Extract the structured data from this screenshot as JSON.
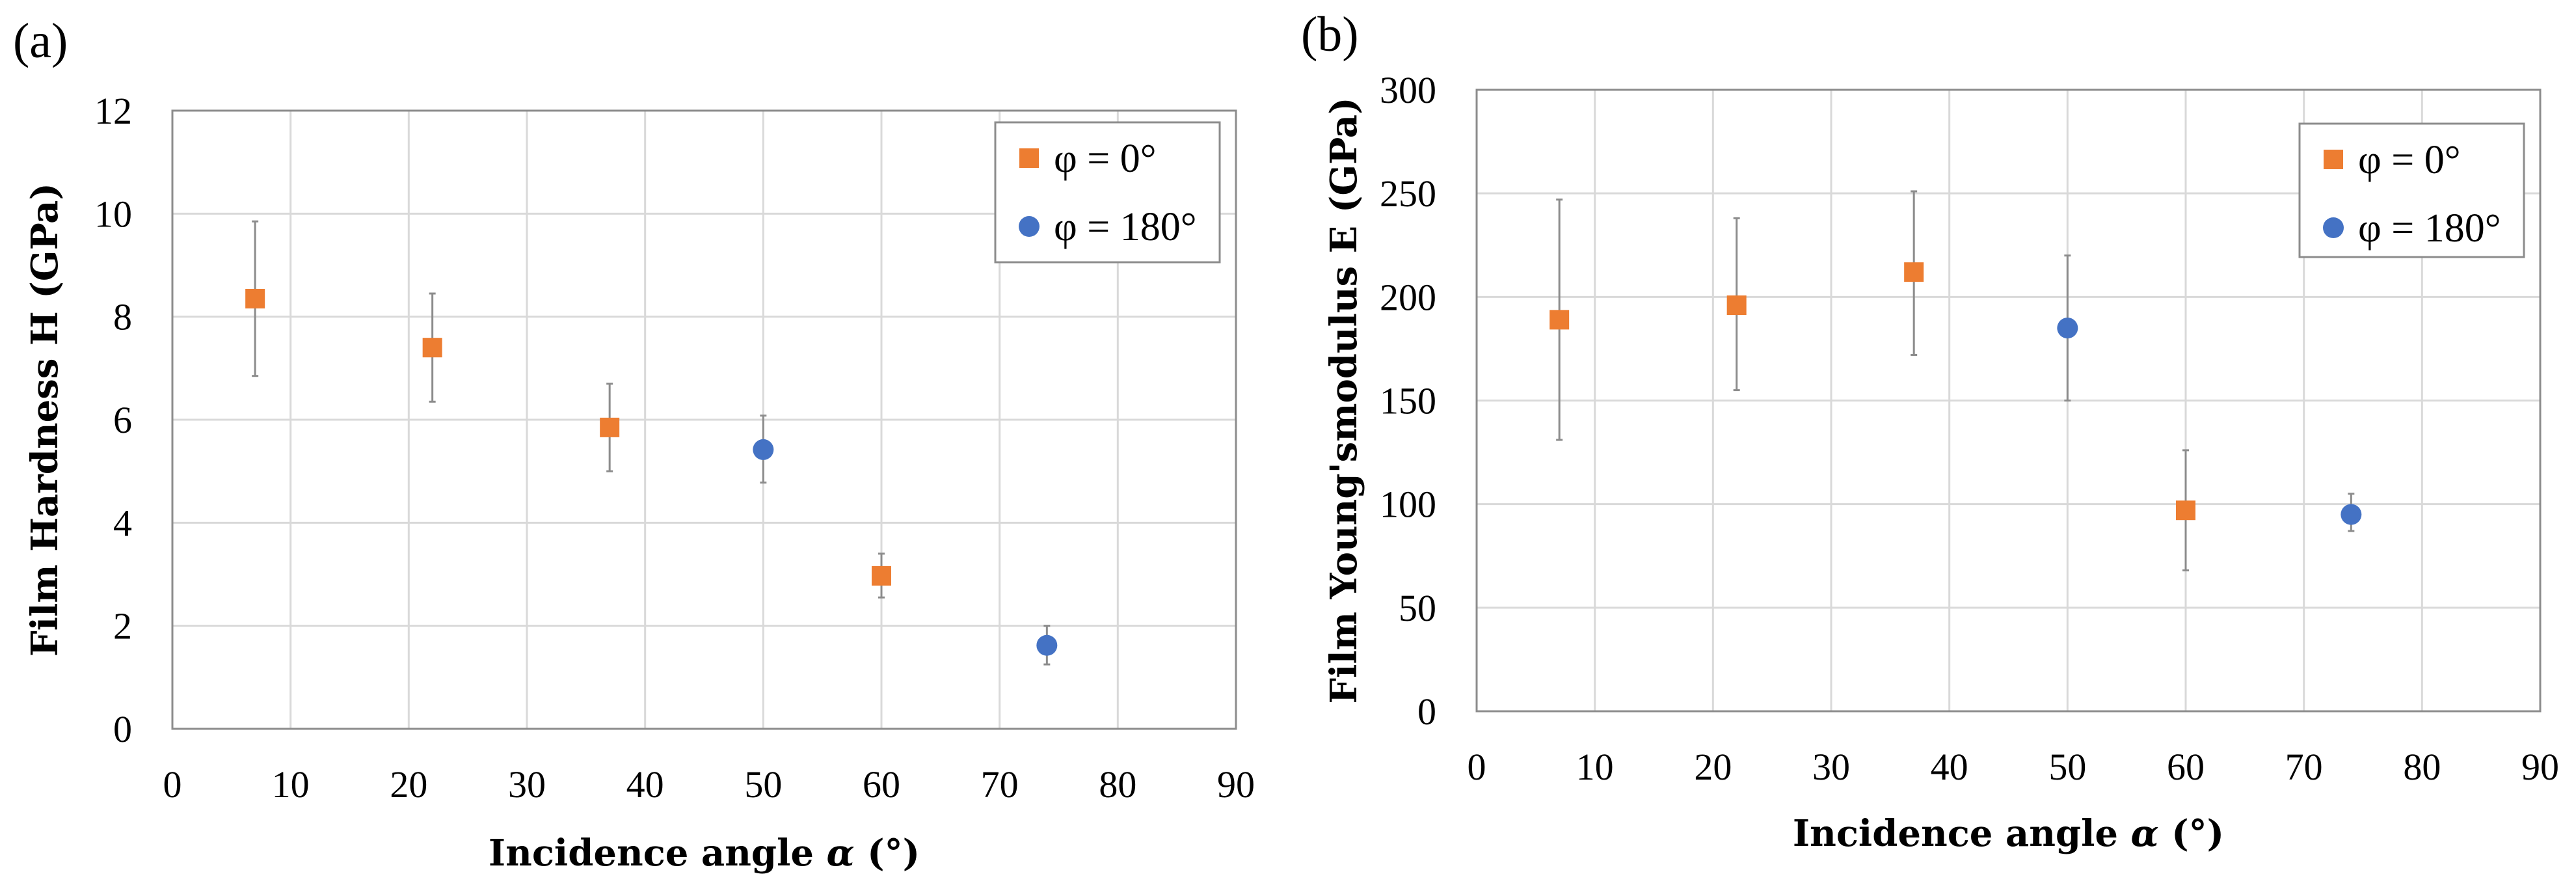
{
  "colors": {
    "phi0": "#ED7D31",
    "phi180": "#4472C4",
    "grid": "#d9d9d9",
    "frame": "#8c8c8c"
  },
  "chart_data": [
    {
      "type": "scatter",
      "panel_label": "(a)",
      "xlabel_prefix": "Incidence angle ",
      "xlabel_symbol": "α",
      "xlabel_suffix": " (°)",
      "ylabel": "Film Hardness H (GPa)",
      "xlim": [
        0,
        90
      ],
      "ylim": [
        0,
        12
      ],
      "xticks": [
        0,
        10,
        20,
        30,
        40,
        50,
        60,
        70,
        80,
        90
      ],
      "yticks": [
        0,
        2,
        4,
        6,
        8,
        10,
        12
      ],
      "grid": true,
      "legend_position": "top-right",
      "series": [
        {
          "name": "φ = 0°",
          "marker": "square",
          "color": "#ED7D31",
          "x": [
            7,
            22,
            37,
            60
          ],
          "y": [
            8.35,
            7.4,
            5.85,
            2.97
          ],
          "err_low": [
            6.85,
            6.35,
            5.0,
            2.55
          ],
          "err_high": [
            9.85,
            8.45,
            6.7,
            3.4
          ]
        },
        {
          "name": "φ = 180°",
          "marker": "circle",
          "color": "#4472C4",
          "x": [
            50,
            74
          ],
          "y": [
            5.42,
            1.62
          ],
          "err_low": [
            4.78,
            1.25
          ],
          "err_high": [
            6.08,
            2.0
          ]
        }
      ]
    },
    {
      "type": "scatter",
      "panel_label": "(b)",
      "xlabel_prefix": "Incidence angle ",
      "xlabel_symbol": "α",
      "xlabel_suffix": " (°)",
      "ylabel": "Film Young'smodulus E (GPa)",
      "xlim": [
        0,
        90
      ],
      "ylim": [
        0,
        300
      ],
      "xticks": [
        0,
        10,
        20,
        30,
        40,
        50,
        60,
        70,
        80,
        90
      ],
      "yticks": [
        0,
        50,
        100,
        150,
        200,
        250,
        300
      ],
      "grid": true,
      "legend_position": "top-right",
      "series": [
        {
          "name": "φ = 0°",
          "marker": "square",
          "color": "#ED7D31",
          "x": [
            7,
            22,
            37,
            60
          ],
          "y": [
            189,
            196,
            212,
            97
          ],
          "err_low": [
            131,
            155,
            172,
            68
          ],
          "err_high": [
            247,
            238,
            251,
            126
          ]
        },
        {
          "name": "φ = 180°",
          "marker": "circle",
          "color": "#4472C4",
          "x": [
            50,
            74
          ],
          "y": [
            185,
            95
          ],
          "err_low": [
            150,
            87
          ],
          "err_high": [
            220,
            105
          ]
        }
      ]
    }
  ]
}
